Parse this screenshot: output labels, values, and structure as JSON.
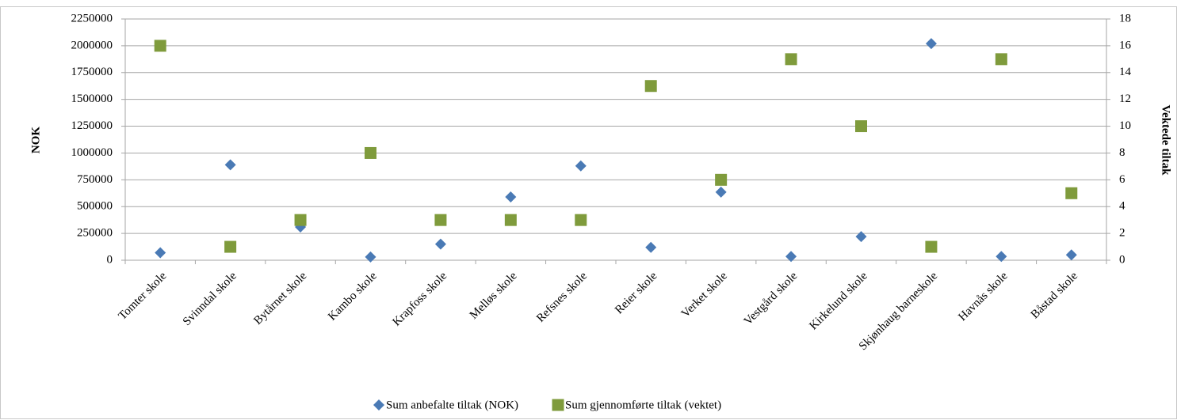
{
  "chart_data": {
    "type": "scatter",
    "categories": [
      "Tomter skole",
      "Svinndal skole",
      "Bytårnet skole",
      "Kambo skole",
      "Krapfoss skole",
      "Melløs skole",
      "Refsnes skole",
      "Reier skole",
      "Verket skole",
      "Vestgård skole",
      "Kirkelund skole",
      "Skjønhaug barneskole",
      "Havnås skole",
      "Båstad skole"
    ],
    "series": [
      {
        "name": "Sum anbefalte tiltak (NOK)",
        "color": "#4a7ab5",
        "marker": "diamond",
        "values": [
          70000,
          890000,
          310000,
          30000,
          150000,
          590000,
          880000,
          120000,
          635000,
          35000,
          220000,
          2020000,
          35000,
          50000
        ]
      },
      {
        "name": "Sum gjennomførte tiltak (vektet)",
        "color": "#7f9b3c",
        "marker": "square",
        "axis": "y2",
        "values": [
          16,
          1,
          3,
          8,
          3,
          3,
          3,
          13,
          6,
          15,
          10,
          1,
          15,
          5
        ]
      }
    ],
    "ylabel": "NOK",
    "y2label": "Vektede tiltak",
    "ylim": [
      0,
      2250000
    ],
    "yticks": [
      0,
      250000,
      500000,
      750000,
      1000000,
      1250000,
      1500000,
      1750000,
      2000000,
      2250000
    ],
    "y2lim": [
      0,
      18
    ],
    "y2ticks": [
      0,
      2,
      4,
      6,
      8,
      10,
      12,
      14,
      16,
      18
    ],
    "grid": true,
    "legend": "bottom"
  }
}
